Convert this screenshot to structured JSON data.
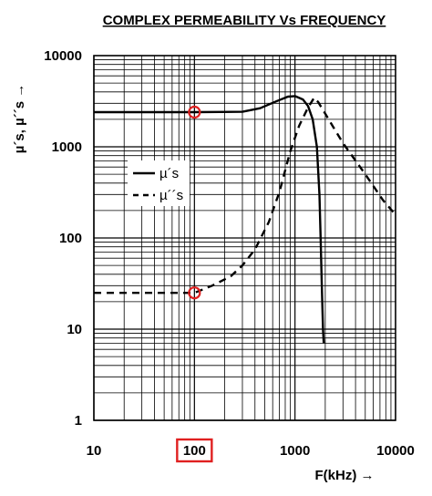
{
  "chart_data": {
    "type": "line",
    "title": "COMPLEX PERMEABILITY  Vs FREQUENCY",
    "xlabel": "F(kHz)  →",
    "ylabel": "µ´s, µ´´s  →",
    "xscale": "log",
    "yscale": "log",
    "xlim": [
      10,
      10000
    ],
    "ylim": [
      1,
      10000
    ],
    "x_ticks": [
      "10",
      "100",
      "1000",
      "10000"
    ],
    "y_ticks": [
      "1",
      "10",
      "100",
      "1000",
      "10000"
    ],
    "highlighted_x_tick": "100",
    "grid": true,
    "legend": "center-left",
    "series": [
      {
        "name": "µ´s",
        "style": "solid",
        "points": [
          [
            10,
            2400
          ],
          [
            100,
            2400
          ],
          [
            300,
            2420
          ],
          [
            450,
            2650
          ],
          [
            650,
            3150
          ],
          [
            850,
            3550
          ],
          [
            1000,
            3600
          ],
          [
            1200,
            3300
          ],
          [
            1350,
            2800
          ],
          [
            1500,
            2000
          ],
          [
            1650,
            1000
          ],
          [
            1750,
            300
          ],
          [
            1800,
            100
          ],
          [
            1850,
            30
          ],
          [
            1900,
            10
          ],
          [
            1930,
            7
          ]
        ]
      },
      {
        "name": "µ´´s",
        "style": "dashed",
        "points": [
          [
            10,
            25
          ],
          [
            100,
            25
          ],
          [
            150,
            30
          ],
          [
            230,
            38
          ],
          [
            300,
            50
          ],
          [
            400,
            75
          ],
          [
            550,
            150
          ],
          [
            700,
            320
          ],
          [
            900,
            900
          ],
          [
            1100,
            1700
          ],
          [
            1350,
            2700
          ],
          [
            1550,
            3450
          ],
          [
            1700,
            3100
          ],
          [
            2000,
            2300
          ],
          [
            3000,
            1100
          ],
          [
            5000,
            500
          ],
          [
            7500,
            260
          ],
          [
            10000,
            180
          ]
        ]
      }
    ],
    "markers": [
      {
        "x": 100,
        "y": 2400,
        "shape": "circle",
        "color": "#e02020"
      },
      {
        "x": 100,
        "y": 25,
        "shape": "circle",
        "color": "#e02020"
      }
    ]
  }
}
